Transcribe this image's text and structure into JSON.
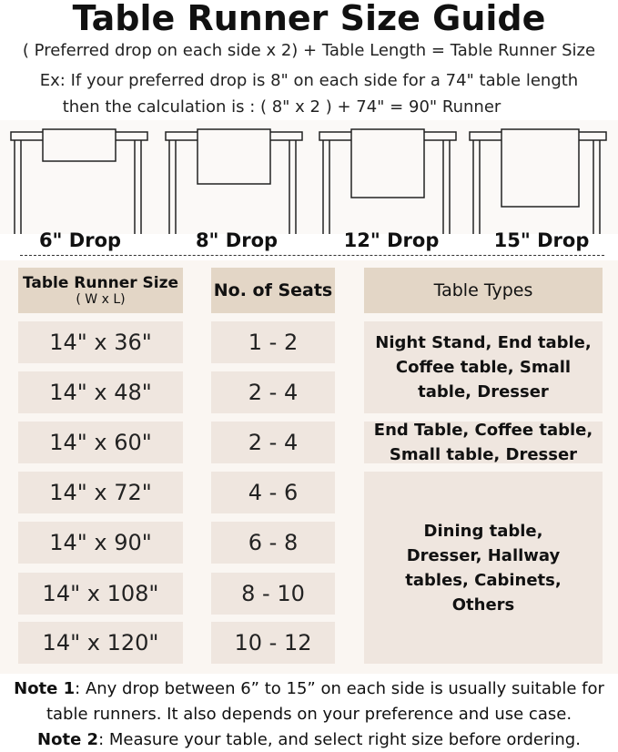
{
  "title": "Table Runner Size Guide",
  "formula": "( Preferred drop on each side x 2) + Table Length = Table Runner Size",
  "example_line1": "Ex: If your preferred drop is 8\" on each side for a 74\" table length",
  "example_line2": "then the calculation is : ( 8\" x 2 ) + 74\" = 90\" Runner",
  "drops": [
    "6\" Drop",
    "8\" Drop",
    "12\" Drop",
    "15\" Drop"
  ],
  "headers": {
    "size": "Table Runner Size",
    "size_sub": "( W x L)",
    "seats": "No. of Seats",
    "types": "Table Types"
  },
  "rows": [
    {
      "size": "14\" x 36\"",
      "seats": "1 - 2"
    },
    {
      "size": "14\" x 48\"",
      "seats": "2 - 4"
    },
    {
      "size": "14\" x 60\"",
      "seats": "2 - 4"
    },
    {
      "size": "14\" x 72\"",
      "seats": "4 - 6"
    },
    {
      "size": "14\" x 90\"",
      "seats": "6 - 8"
    },
    {
      "size": "14\" x 108\"",
      "seats": "8 - 10"
    },
    {
      "size": "14\" x 120\"",
      "seats": "10 - 12"
    }
  ],
  "types": [
    "Night Stand, End table, Coffee table, Small table, Dresser",
    "End Table, Coffee table, Small table, Dresser",
    "Dining table, Dresser, Hallway tables, Cabinets, Others"
  ],
  "notes": [
    {
      "label": "Note 1",
      "text": ": Any drop between 6” to 15” on each side is usually suitable for"
    },
    {
      "label": "",
      "text": "table runners. It also depends on your preference and use case."
    },
    {
      "label": "Note 2",
      "text": ": Measure your table, and select right size before ordering."
    }
  ]
}
